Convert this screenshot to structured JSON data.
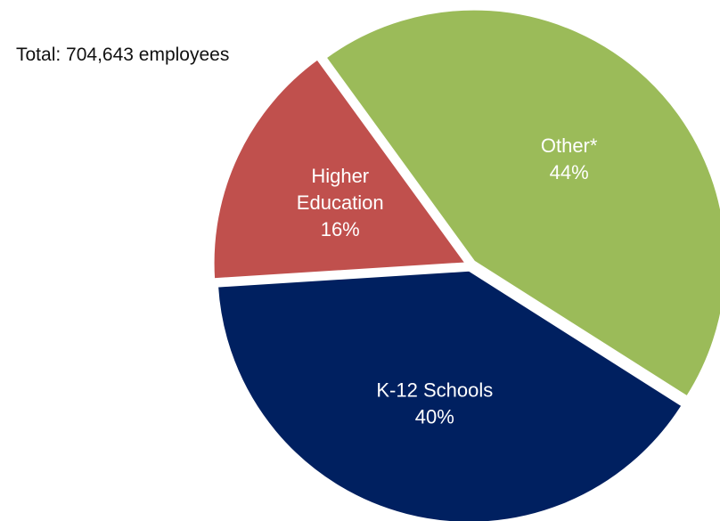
{
  "note": "Total: 704,643 employees",
  "chart_data": {
    "type": "pie",
    "title": "",
    "slices": [
      {
        "label": "Other*",
        "lines": [
          "Other*"
        ],
        "pct_label": "44%",
        "value": 44,
        "color": "#9bbb59"
      },
      {
        "label": "K-12 Schools",
        "lines": [
          "K-12 Schools"
        ],
        "pct_label": "40%",
        "value": 40,
        "color": "#002060"
      },
      {
        "label": "Higher Education",
        "lines": [
          "Higher",
          "Education"
        ],
        "pct_label": "16%",
        "value": 16,
        "color": "#c0504d"
      }
    ],
    "start_angle_deg": 324,
    "exploded": true,
    "label_color": "#ffffff"
  }
}
